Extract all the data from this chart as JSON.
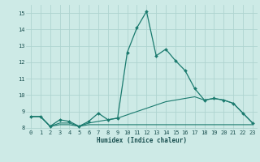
{
  "xlabel": "Humidex (Indice chaleur)",
  "background_color": "#cdeae6",
  "grid_color": "#afd4d0",
  "line_color": "#1a7a6e",
  "x_main": [
    0,
    1,
    2,
    3,
    4,
    5,
    6,
    7,
    8,
    9,
    10,
    11,
    12,
    13,
    14,
    15,
    16,
    17,
    18,
    19,
    20,
    21,
    22,
    23
  ],
  "y_main": [
    8.7,
    8.7,
    8.1,
    8.5,
    8.4,
    8.1,
    8.4,
    8.9,
    8.5,
    8.6,
    12.6,
    14.1,
    15.1,
    12.4,
    12.8,
    12.1,
    11.5,
    10.4,
    9.7,
    9.8,
    9.7,
    9.5,
    8.9,
    8.3
  ],
  "y_flat": [
    8.7,
    8.7,
    8.1,
    8.2,
    8.2,
    8.1,
    8.2,
    8.2,
    8.2,
    8.2,
    8.2,
    8.2,
    8.2,
    8.2,
    8.2,
    8.2,
    8.2,
    8.2,
    8.2,
    8.2,
    8.2,
    8.2,
    8.2,
    8.2
  ],
  "y_slope": [
    8.7,
    8.7,
    8.1,
    8.3,
    8.3,
    8.1,
    8.3,
    8.4,
    8.5,
    8.6,
    8.8,
    9.0,
    9.2,
    9.4,
    9.6,
    9.7,
    9.8,
    9.9,
    9.7,
    9.8,
    9.7,
    9.5,
    8.9,
    8.3
  ],
  "ylim": [
    7.9,
    15.5
  ],
  "xlim": [
    -0.5,
    23.5
  ],
  "yticks": [
    8,
    9,
    10,
    11,
    12,
    13,
    14,
    15
  ],
  "xticks": [
    0,
    1,
    2,
    3,
    4,
    5,
    6,
    7,
    8,
    9,
    10,
    11,
    12,
    13,
    14,
    15,
    16,
    17,
    18,
    19,
    20,
    21,
    22,
    23
  ]
}
